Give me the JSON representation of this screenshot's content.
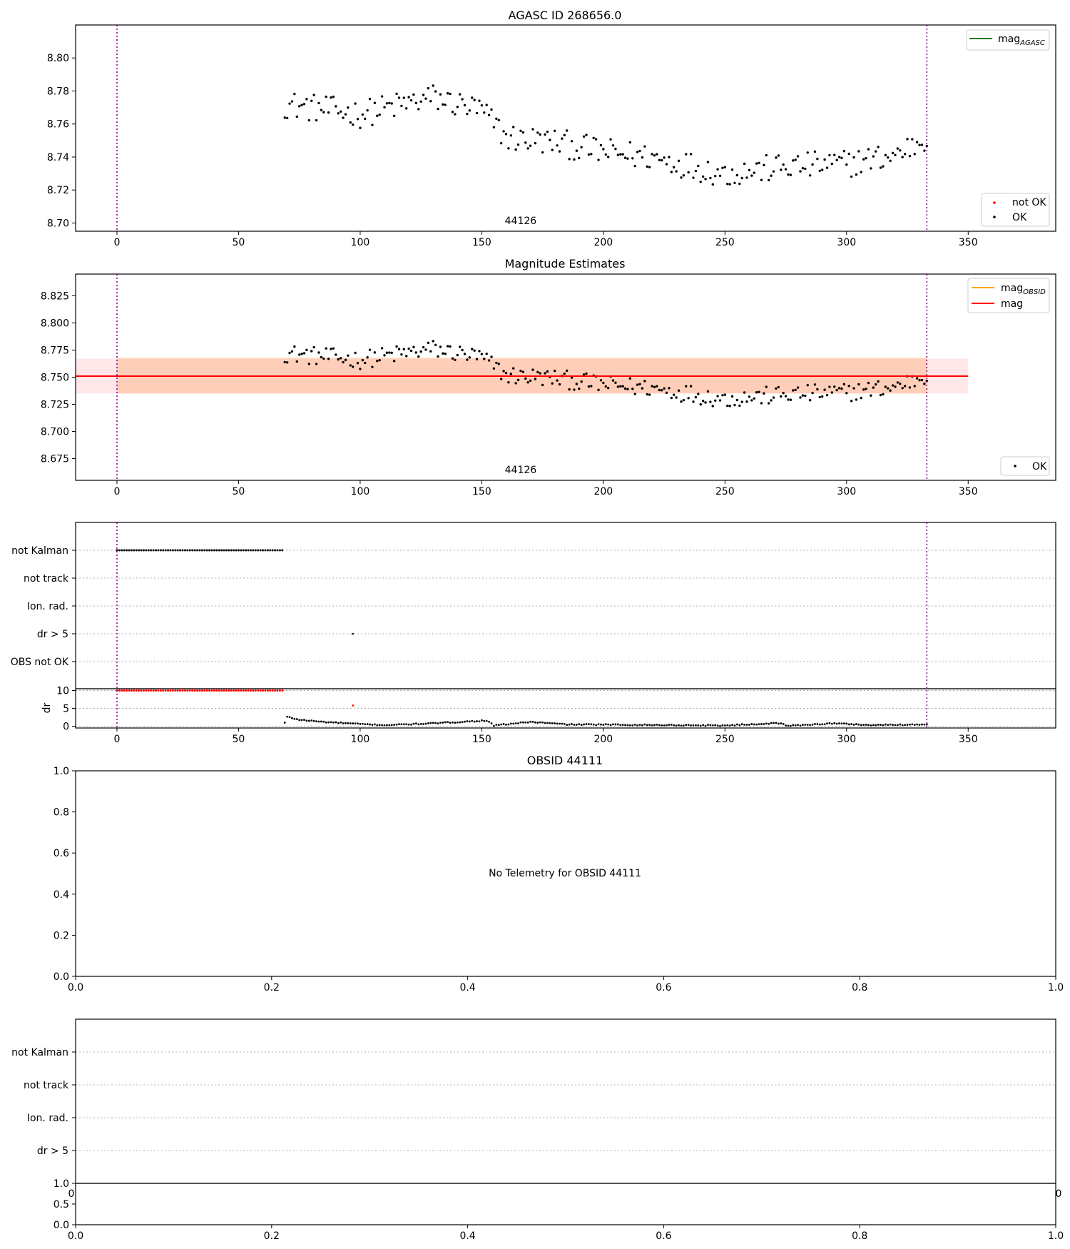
{
  "chart_data": [
    {
      "type": "scatter",
      "title": "AGASC ID 268656.0",
      "xlim": [
        -17,
        386
      ],
      "ylim": [
        8.695,
        8.82
      ],
      "xticks": [
        0,
        50,
        100,
        150,
        200,
        250,
        300,
        350
      ],
      "yticks": [
        8.7,
        8.72,
        8.74,
        8.76,
        8.78,
        8.8
      ],
      "ytick_decimals": 2,
      "vlines": [
        0,
        333
      ],
      "annotation": {
        "text": "44126",
        "x": 166
      },
      "legend_lines": [
        {
          "label": "mag",
          "sub": "AGASC",
          "color": "#1a7a1a"
        }
      ],
      "legend_points": [
        {
          "label": "not OK",
          "color": "#ff0000"
        },
        {
          "label": "OK",
          "color": "#000000"
        }
      ],
      "series": [
        {
          "name": "OK",
          "color": "#000000",
          "x_start": 69,
          "x_end": 333,
          "anchors": [
            [
              69,
              8.772
            ],
            [
              100,
              8.766
            ],
            [
              130,
              8.776
            ],
            [
              150,
              8.768
            ],
            [
              160,
              8.752
            ],
            [
              180,
              8.749
            ],
            [
              200,
              8.743
            ],
            [
              220,
              8.74
            ],
            [
              250,
              8.73
            ],
            [
              275,
              8.734
            ],
            [
              300,
              8.736
            ],
            [
              320,
              8.741
            ],
            [
              333,
              8.752
            ]
          ],
          "noise": 0.0085
        }
      ]
    },
    {
      "type": "scatter",
      "title": "Magnitude Estimates",
      "xlim": [
        -17,
        386
      ],
      "ylim": [
        8.655,
        8.845
      ],
      "xticks": [
        0,
        50,
        100,
        150,
        200,
        250,
        300,
        350
      ],
      "yticks": [
        8.675,
        8.7,
        8.725,
        8.75,
        8.775,
        8.8,
        8.825
      ],
      "ytick_decimals": 3,
      "vlines": [
        0,
        333
      ],
      "annotation": {
        "text": "44126",
        "x": 166
      },
      "mag": 8.751,
      "mag_band": [
        8.735,
        8.767
      ],
      "mag_band_x": [
        -17,
        350
      ],
      "obsid_band": [
        8.735,
        8.768
      ],
      "obsid_band_x": [
        0,
        333
      ],
      "legend_lines": [
        {
          "label": "mag",
          "sub": "OBSID",
          "color": "#ffa500"
        },
        {
          "label": "mag",
          "sub": "",
          "color": "#ff0000"
        }
      ],
      "legend_points": [
        {
          "label": "OK",
          "color": "#000000"
        }
      ],
      "series": [
        {
          "name": "OK",
          "color": "#000000",
          "x_start": 69,
          "x_end": 333,
          "anchors": [
            [
              69,
              8.772
            ],
            [
              100,
              8.766
            ],
            [
              130,
              8.776
            ],
            [
              150,
              8.768
            ],
            [
              160,
              8.752
            ],
            [
              180,
              8.749
            ],
            [
              200,
              8.743
            ],
            [
              220,
              8.74
            ],
            [
              250,
              8.73
            ],
            [
              275,
              8.734
            ],
            [
              300,
              8.736
            ],
            [
              320,
              8.741
            ],
            [
              333,
              8.752
            ]
          ],
          "noise": 0.0085
        }
      ]
    },
    {
      "type": "scatter",
      "title": "",
      "xlim": [
        -17,
        386
      ],
      "categories": [
        "not Kalman",
        "not track",
        "Ion. rad.",
        "dr > 5",
        "OBS not OK"
      ],
      "not_kalman_x": [
        0,
        68
      ],
      "dr5_x": [
        97
      ],
      "sub": {
        "ylabel": "dr",
        "ylim": [
          -0.5,
          10.5
        ],
        "yticks": [
          0,
          5,
          10
        ],
        "xticks": [
          0,
          50,
          100,
          150,
          200,
          250,
          300,
          350
        ],
        "red_x": [
          0,
          68
        ],
        "red_value": 10,
        "red_extra": [
          97,
          5.8
        ],
        "black_anchors": [
          [
            69,
            1.0
          ],
          [
            70,
            2.6
          ],
          [
            75,
            1.8
          ],
          [
            85,
            1.2
          ],
          [
            100,
            0.6
          ],
          [
            110,
            0.3
          ],
          [
            130,
            0.8
          ],
          [
            152,
            1.6
          ],
          [
            155,
            0.2
          ],
          [
            170,
            1.2
          ],
          [
            185,
            0.5
          ],
          [
            250,
            0.2
          ],
          [
            273,
            0.9
          ],
          [
            275,
            0.1
          ],
          [
            295,
            0.8
          ],
          [
            310,
            0.3
          ],
          [
            333,
            0.5
          ]
        ]
      },
      "vlines": [
        0,
        333
      ]
    },
    {
      "type": "scatter",
      "title": "OBSID 44111",
      "message": "No Telemetry for OBSID 44111",
      "xlim": [
        0,
        1
      ],
      "ylim": [
        0,
        1
      ],
      "xticks": [
        0.0,
        0.2,
        0.4,
        0.6,
        0.8,
        1.0
      ],
      "yticks": [
        0.0,
        0.2,
        0.4,
        0.6,
        0.8,
        1.0
      ]
    },
    {
      "type": "scatter",
      "title": "",
      "categories": [
        "not Kalman",
        "not track",
        "Ion. rad.",
        "dr > 5"
      ],
      "partial_xtick_labels": [
        "0",
        "0"
      ],
      "sub": {
        "ylim": [
          0,
          1
        ],
        "yticks": [
          0.0,
          0.5,
          1.0
        ],
        "xticks": [
          0.0,
          0.2,
          0.4,
          0.6,
          0.8,
          1.0
        ]
      }
    }
  ]
}
